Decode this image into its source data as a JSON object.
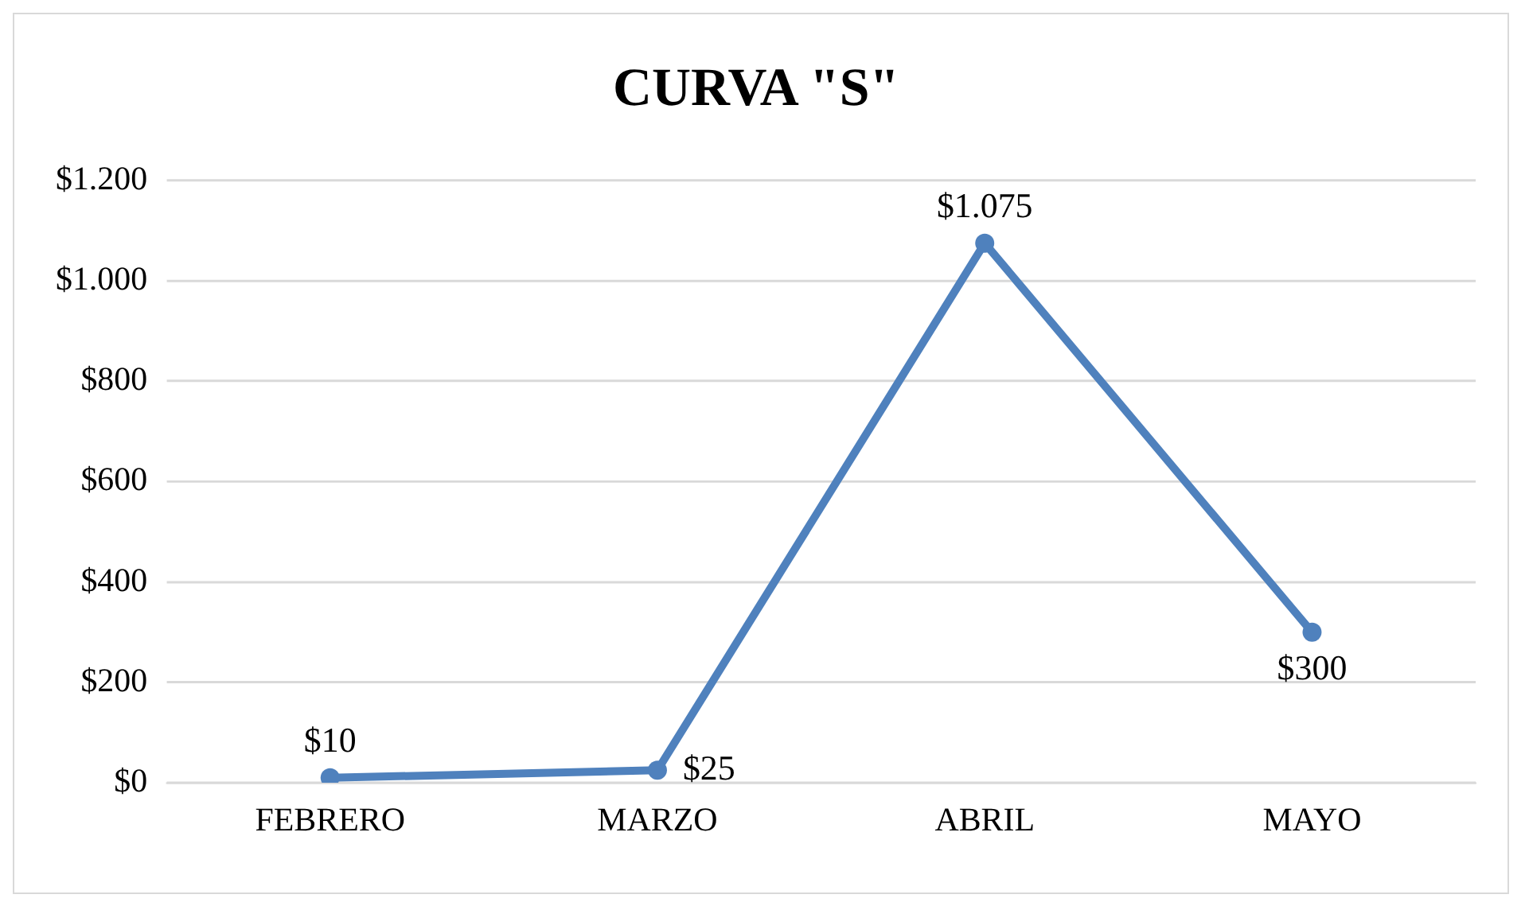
{
  "chart_data": {
    "type": "line",
    "title": "CURVA \"S\"",
    "categories": [
      "FEBRERO",
      "MARZO",
      "ABRIL",
      "MAYO"
    ],
    "series": [
      {
        "color": "#4f81bd",
        "values": [
          10,
          25,
          1075,
          300
        ],
        "value_labels": [
          "$10",
          "$25",
          "$1.075",
          "$300"
        ]
      }
    ],
    "ylim": [
      0,
      1200
    ],
    "yticks": [
      {
        "value": 0,
        "label": "$0"
      },
      {
        "value": 200,
        "label": "$200"
      },
      {
        "value": 400,
        "label": "$400"
      },
      {
        "value": 600,
        "label": "$600"
      },
      {
        "value": 800,
        "label": "$800"
      },
      {
        "value": 1000,
        "label": "$1.000"
      },
      {
        "value": 1200,
        "label": "$1.200"
      }
    ],
    "grid": "y",
    "marker": "circle",
    "line_style": "solid",
    "legend": false
  }
}
